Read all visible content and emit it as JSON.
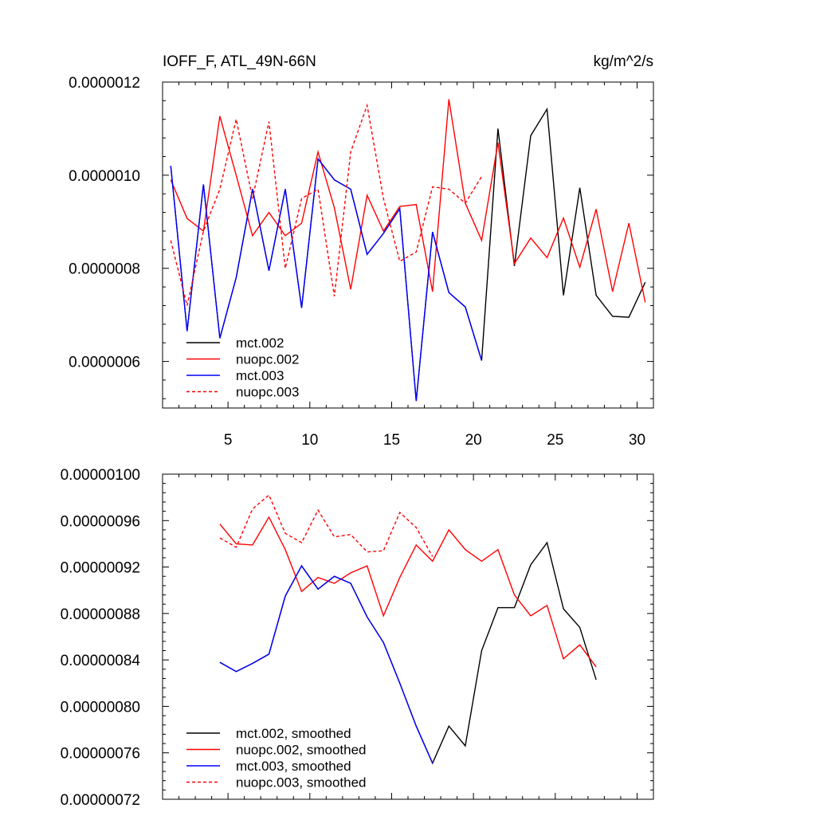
{
  "chart_data": [
    {
      "type": "line",
      "title": "IOFF_F, ATL_49N-66N",
      "units": "kg/m^2/s",
      "xlim": [
        1,
        31
      ],
      "ylim": [
        5e-07,
        1.2e-06
      ],
      "xticks": [
        5,
        10,
        15,
        20,
        25,
        30
      ],
      "xtick_labels": [
        "5",
        "10",
        "15",
        "20",
        "25",
        "30"
      ],
      "yticks": [
        6e-07,
        8e-07,
        1e-06,
        1.2e-06
      ],
      "ytick_labels": [
        "0.0000006",
        "0.0000008",
        "0.0000010",
        "0.0000012"
      ],
      "legend_position": "bottom-left",
      "series": [
        {
          "name": "mct.002",
          "color": "#000000",
          "dash": "solid",
          "x": [
            1.5,
            2.5,
            3.5,
            4.5,
            5.5,
            6.5,
            7.5,
            8.5,
            9.5,
            10.5,
            11.5,
            12.5,
            13.5,
            14.5,
            15.5,
            16.5,
            17.5,
            18.5,
            19.5,
            20.5,
            21.5,
            22.5,
            23.5,
            24.5,
            25.5,
            26.5,
            27.5,
            28.5,
            29.5,
            30.5
          ],
          "values": [
            1.02e-06,
            6.65e-07,
            9.8e-07,
            6.5e-07,
            7.8e-07,
            9.7e-07,
            7.95e-07,
            9.7e-07,
            7.15e-07,
            1.035e-06,
            9.9e-07,
            9.7e-07,
            8.3e-07,
            8.75e-07,
            9.28e-07,
            5.15e-07,
            8.78e-07,
            7.48e-07,
            7.17e-07,
            6.02e-07,
            1.1e-06,
            8.05e-07,
            1.085e-06,
            1.142e-06,
            7.42e-07,
            9.73e-07,
            7.42e-07,
            6.97e-07,
            6.95e-07,
            7.7e-07
          ]
        },
        {
          "name": "nuopc.002",
          "color": "#ff0000",
          "dash": "solid",
          "x": [
            1.5,
            2.5,
            3.5,
            4.5,
            5.5,
            6.5,
            7.5,
            8.5,
            9.5,
            10.5,
            11.5,
            12.5,
            13.5,
            14.5,
            15.5,
            16.5,
            17.5,
            18.5,
            19.5,
            20.5,
            21.5,
            22.5,
            23.5,
            24.5,
            25.5,
            26.5,
            27.5,
            28.5,
            29.5,
            30.5
          ],
          "values": [
            9.9e-07,
            9.07e-07,
            8.8e-07,
            1.127e-06,
            1e-06,
            8.7e-07,
            9.2e-07,
            8.7e-07,
            8.97e-07,
            1.05e-06,
            9.3e-07,
            7.55e-07,
            9.57e-07,
            8.8e-07,
            9.33e-07,
            9.37e-07,
            7.5e-07,
            1.163e-06,
            9.4e-07,
            8.6e-07,
            1.07e-06,
            8.1e-07,
            8.65e-07,
            8.23e-07,
            9.08e-07,
            8.02e-07,
            9.27e-07,
            7.5e-07,
            8.97e-07,
            7.27e-07
          ]
        },
        {
          "name": "mct.003",
          "color": "#0000ff",
          "dash": "solid",
          "x": [
            1.5,
            2.5,
            3.5,
            4.5,
            5.5,
            6.5,
            7.5,
            8.5,
            9.5,
            10.5,
            11.5,
            12.5,
            13.5,
            14.5,
            15.5,
            16.5,
            17.5,
            18.5,
            19.5,
            20.5
          ],
          "values": [
            1.02e-06,
            6.65e-07,
            9.8e-07,
            6.5e-07,
            7.8e-07,
            9.7e-07,
            7.95e-07,
            9.7e-07,
            7.15e-07,
            1.035e-06,
            9.9e-07,
            9.7e-07,
            8.3e-07,
            8.75e-07,
            9.28e-07,
            5.15e-07,
            8.78e-07,
            7.48e-07,
            7.17e-07,
            6.02e-07
          ]
        },
        {
          "name": "nuopc.003",
          "color": "#ff0000",
          "dash": "dashed",
          "x": [
            1.5,
            2.5,
            3.5,
            4.5,
            5.5,
            6.5,
            7.5,
            8.5,
            9.5,
            10.5,
            11.5,
            12.5,
            13.5,
            14.5,
            15.5,
            16.5,
            17.5,
            18.5,
            19.5,
            20.5
          ],
          "values": [
            8.6e-07,
            7.2e-07,
            8.8e-07,
            9.7e-07,
            1.12e-06,
            9.5e-07,
            1.115e-06,
            8e-07,
            9.5e-07,
            9.7e-07,
            7.4e-07,
            1.05e-06,
            1.15e-06,
            9.5e-07,
            8.15e-07,
            8.35e-07,
            9.75e-07,
            9.7e-07,
            9.4e-07,
            9.97e-07
          ]
        }
      ]
    },
    {
      "type": "line",
      "title": "",
      "units": "",
      "xlim": [
        1,
        31
      ],
      "ylim": [
        7.2e-07,
        1e-06
      ],
      "xticks": [
        5,
        10,
        15,
        20,
        25,
        30
      ],
      "xtick_labels": [],
      "yticks": [
        7.2e-07,
        7.6e-07,
        8e-07,
        8.4e-07,
        8.8e-07,
        9.2e-07,
        9.6e-07,
        1e-06
      ],
      "ytick_labels": [
        "0.00000072",
        "0.00000076",
        "0.00000080",
        "0.00000084",
        "0.00000088",
        "0.00000092",
        "0.00000096",
        "0.00000100"
      ],
      "legend_position": "bottom-left",
      "series": [
        {
          "name": "mct.002, smoothed",
          "color": "#000000",
          "dash": "solid",
          "x": [
            4.5,
            5.5,
            6.5,
            7.5,
            8.5,
            9.5,
            10.5,
            11.5,
            12.5,
            13.5,
            14.5,
            15.5,
            16.5,
            17.5,
            18.5,
            19.5,
            20.5,
            21.5,
            22.5,
            23.5,
            24.5,
            25.5,
            26.5,
            27.5
          ],
          "values": [
            8.38e-07,
            8.3e-07,
            8.37e-07,
            8.45e-07,
            8.95e-07,
            9.21e-07,
            9.01e-07,
            9.12e-07,
            9.06e-07,
            8.77e-07,
            8.55e-07,
            8.2e-07,
            7.83e-07,
            7.51e-07,
            7.83e-07,
            7.66e-07,
            8.48e-07,
            8.85e-07,
            8.85e-07,
            9.22e-07,
            9.41e-07,
            8.84e-07,
            8.68e-07,
            8.23e-07
          ]
        },
        {
          "name": "nuopc.002, smoothed",
          "color": "#ff0000",
          "dash": "solid",
          "x": [
            4.5,
            5.5,
            6.5,
            7.5,
            8.5,
            9.5,
            10.5,
            11.5,
            12.5,
            13.5,
            14.5,
            15.5,
            16.5,
            17.5,
            18.5,
            19.5,
            20.5,
            21.5,
            22.5,
            23.5,
            24.5,
            25.5,
            26.5,
            27.5
          ],
          "values": [
            9.57e-07,
            9.4e-07,
            9.39e-07,
            9.63e-07,
            9.35e-07,
            8.99e-07,
            9.11e-07,
            9.06e-07,
            9.15e-07,
            9.21e-07,
            8.78e-07,
            9.11e-07,
            9.39e-07,
            9.25e-07,
            9.52e-07,
            9.35e-07,
            9.25e-07,
            9.35e-07,
            8.96e-07,
            8.78e-07,
            8.87e-07,
            8.41e-07,
            8.53e-07,
            8.34e-07
          ]
        },
        {
          "name": "mct.003, smoothed",
          "color": "#0000ff",
          "dash": "solid",
          "x": [
            4.5,
            5.5,
            6.5,
            7.5,
            8.5,
            9.5,
            10.5,
            11.5,
            12.5,
            13.5,
            14.5,
            15.5,
            16.5,
            17.5
          ],
          "values": [
            8.38e-07,
            8.3e-07,
            8.37e-07,
            8.45e-07,
            8.95e-07,
            9.21e-07,
            9.01e-07,
            9.12e-07,
            9.06e-07,
            8.77e-07,
            8.55e-07,
            8.2e-07,
            7.83e-07,
            7.51e-07
          ]
        },
        {
          "name": "nuopc.003, smoothed",
          "color": "#ff0000",
          "dash": "dashed",
          "x": [
            4.5,
            5.5,
            6.5,
            7.5,
            8.5,
            9.5,
            10.5,
            11.5,
            12.5,
            13.5,
            14.5,
            15.5,
            16.5,
            17.5
          ],
          "values": [
            9.45e-07,
            9.37e-07,
            9.7e-07,
            9.82e-07,
            9.49e-07,
            9.41e-07,
            9.69e-07,
            9.46e-07,
            9.48e-07,
            9.33e-07,
            9.34e-07,
            9.67e-07,
            9.54e-07,
            9.29e-07
          ]
        }
      ]
    }
  ]
}
